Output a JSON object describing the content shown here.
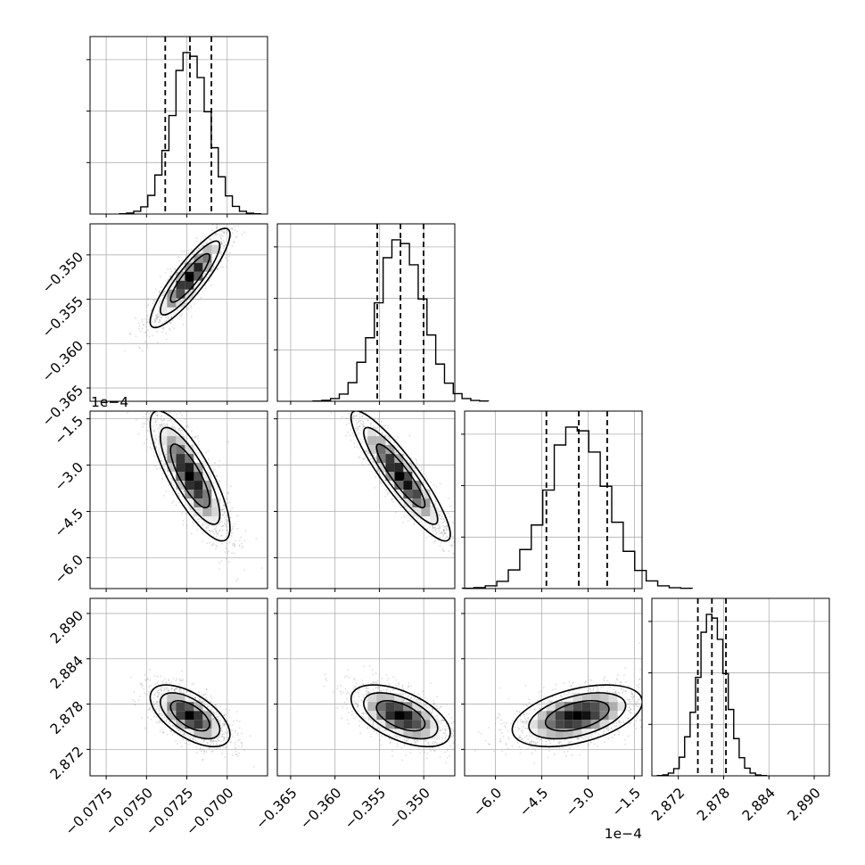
{
  "chart_data": {
    "type": "corner",
    "parameters": [
      {
        "index": 0,
        "range": [
          -0.0785,
          -0.0675
        ],
        "ticks": [
          -0.0775,
          -0.075,
          -0.0725,
          -0.07
        ],
        "tick_labels": [
          "−0.0775",
          "−0.0750",
          "−0.0725",
          "−0.0700"
        ],
        "quantiles": [
          -0.07384,
          -0.07231,
          -0.07098
        ],
        "mean": -0.0723,
        "sd": 0.00115
      },
      {
        "index": 1,
        "range": [
          -0.3665,
          -0.3465
        ],
        "ticks": [
          -0.365,
          -0.36,
          -0.355,
          -0.35
        ],
        "tick_labels": [
          "−0.365",
          "−0.360",
          "−0.355",
          "−0.350"
        ],
        "quantiles": [
          -0.35524,
          -0.35262,
          -0.35002
        ],
        "mean": -0.3526,
        "sd": 0.0026
      },
      {
        "index": 2,
        "range": [
          -7.0,
          -1.25
        ],
        "ticks": [
          -6.0,
          -4.5,
          -3.0,
          -1.5
        ],
        "tick_labels": [
          "−6.0",
          "−4.5",
          "−3.0",
          "−1.5"
        ],
        "offset_label": "1e−4",
        "quantiles": [
          -4.35,
          -3.3,
          -2.38
        ],
        "mean": -3.35,
        "sd": 0.98
      },
      {
        "index": 3,
        "range": [
          2.8685,
          2.892
        ],
        "ticks": [
          2.872,
          2.878,
          2.884,
          2.89
        ],
        "tick_labels": [
          "2.872",
          "2.878",
          "2.884",
          "2.890"
        ],
        "quantiles": [
          2.87459,
          2.87645,
          2.87831
        ],
        "mean": 2.87645,
        "sd": 0.0019
      }
    ],
    "correlations": [
      [
        1,
        0.88,
        -0.8,
        -0.6
      ],
      [
        0.88,
        1,
        -0.9,
        -0.55
      ],
      [
        -0.8,
        -0.9,
        1,
        0.45
      ],
      [
        -0.6,
        -0.55,
        0.45,
        1
      ]
    ],
    "histogram_bins": 20,
    "contour_levels": 3,
    "quantile_line_style": "dashed",
    "grid": true
  }
}
